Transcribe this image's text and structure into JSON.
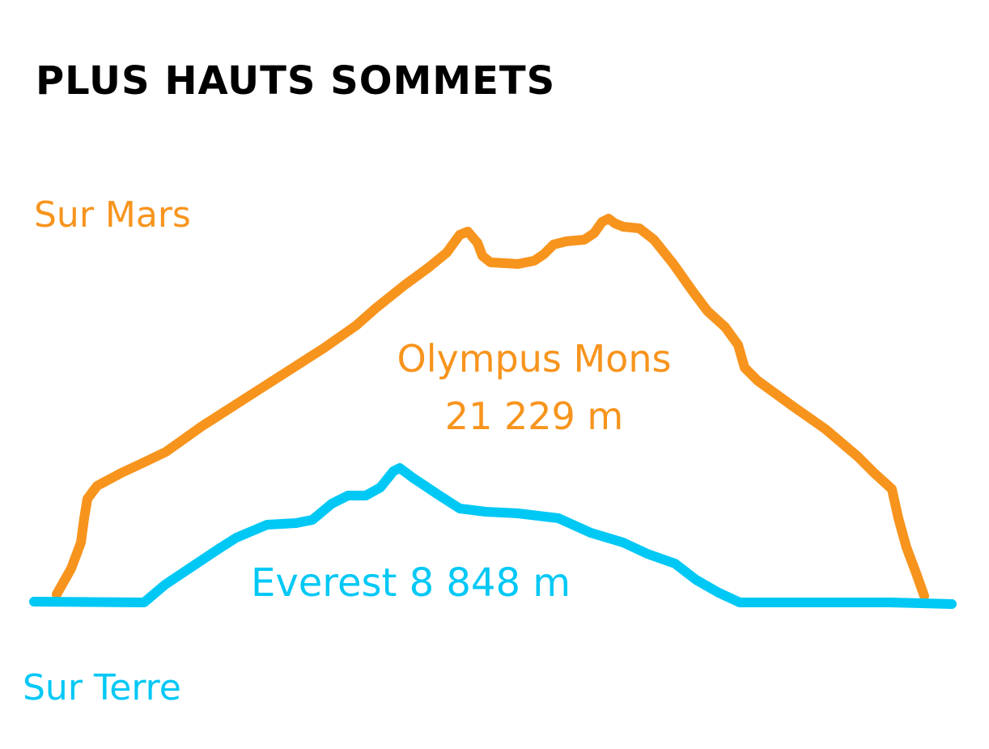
{
  "title": "PLUS HAUTS SOMMETS",
  "colors": {
    "mars": "#f7941d",
    "earth": "#00c8f5",
    "text": "#000000"
  },
  "mars": {
    "location_label": "Sur Mars",
    "summit_name": "Olympus Mons",
    "summit_height": "21 229 m"
  },
  "earth": {
    "location_label": "Sur Terre",
    "summit_name": "Everest 8 848 m"
  }
}
